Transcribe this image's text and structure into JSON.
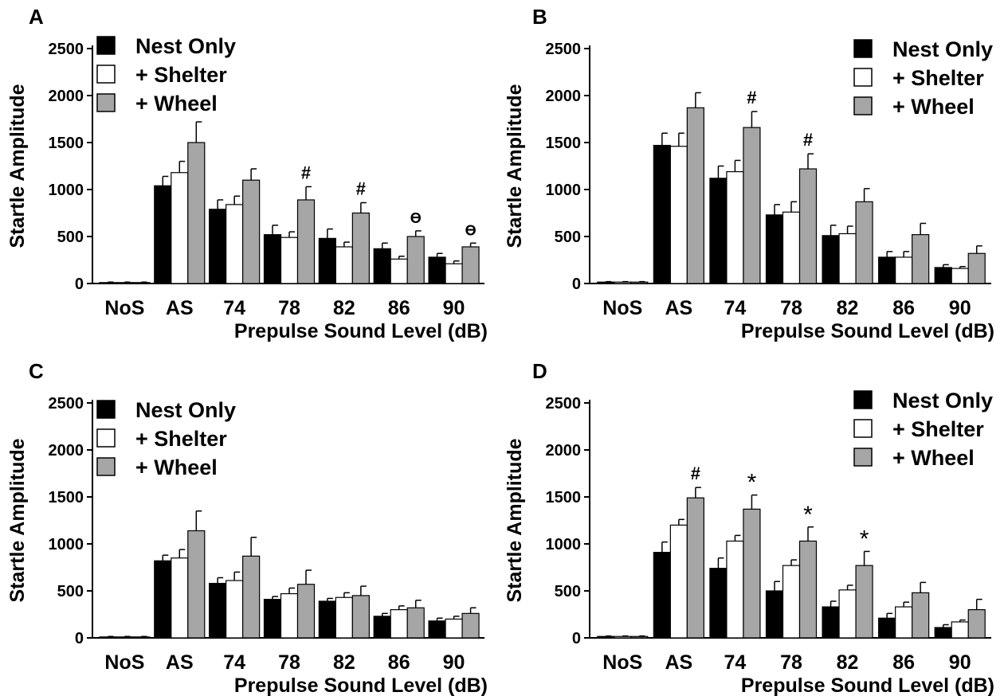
{
  "colors": {
    "Nest Only": "#000000",
    "+ Shelter": "#ffffff",
    "+ Wheel": "#a6a6a6",
    "outline": "#000000"
  },
  "chart_data": [
    {
      "type": "bar",
      "panel": "A",
      "categories": [
        "NoS",
        "AS",
        "74",
        "78",
        "82",
        "86",
        "90"
      ],
      "xlabel": "Prepulse Sound Level (dB)",
      "ylabel": "Startle Amplitude",
      "ylim": [
        0,
        2500
      ],
      "yticks": [
        0,
        500,
        1000,
        1500,
        2000,
        2500
      ],
      "legend": {
        "position": "top-left",
        "entries": [
          "Nest Only",
          "+ Shelter",
          "+ Wheel"
        ]
      },
      "series": [
        {
          "name": "Nest Only",
          "values": [
            10,
            1040,
            790,
            520,
            480,
            370,
            280
          ],
          "errors": [
            5,
            100,
            100,
            100,
            100,
            60,
            40
          ]
        },
        {
          "name": "+ Shelter",
          "values": [
            10,
            1180,
            840,
            490,
            390,
            260,
            210
          ],
          "errors": [
            5,
            120,
            90,
            60,
            50,
            30,
            30
          ]
        },
        {
          "name": "+ Wheel",
          "values": [
            10,
            1500,
            1100,
            890,
            750,
            500,
            390
          ],
          "errors": [
            5,
            220,
            120,
            140,
            110,
            60,
            40
          ]
        }
      ],
      "annotations": [
        {
          "category": "78",
          "text": "#"
        },
        {
          "category": "82",
          "text": "#"
        },
        {
          "category": "86",
          "text": "ϴ"
        },
        {
          "category": "90",
          "text": "ϴ"
        }
      ]
    },
    {
      "type": "bar",
      "panel": "B",
      "categories": [
        "NoS",
        "AS",
        "74",
        "78",
        "82",
        "86",
        "90"
      ],
      "xlabel": "Prepulse Sound Level (dB)",
      "ylabel": "Startle Amplitude",
      "ylim": [
        0,
        2500
      ],
      "yticks": [
        0,
        500,
        1000,
        1500,
        2000,
        2500
      ],
      "legend": {
        "position": "top-right",
        "entries": [
          "Nest Only",
          "+ Shelter",
          "+ Wheel"
        ]
      },
      "series": [
        {
          "name": "Nest Only",
          "values": [
            15,
            1470,
            1120,
            730,
            510,
            280,
            170
          ],
          "errors": [
            5,
            130,
            130,
            110,
            110,
            60,
            30
          ]
        },
        {
          "name": "+ Shelter",
          "values": [
            15,
            1460,
            1190,
            760,
            530,
            280,
            160
          ],
          "errors": [
            5,
            140,
            120,
            110,
            80,
            60,
            20
          ]
        },
        {
          "name": "+ Wheel",
          "values": [
            15,
            1870,
            1660,
            1220,
            870,
            520,
            320
          ],
          "errors": [
            5,
            160,
            170,
            160,
            140,
            120,
            80
          ]
        }
      ],
      "annotations": [
        {
          "category": "74",
          "text": "#"
        },
        {
          "category": "78",
          "text": "#"
        }
      ]
    },
    {
      "type": "bar",
      "panel": "C",
      "categories": [
        "NoS",
        "AS",
        "74",
        "78",
        "82",
        "86",
        "90"
      ],
      "xlabel": "Prepulse Sound Level (dB)",
      "ylabel": "Startle Amplitude",
      "ylim": [
        0,
        2500
      ],
      "yticks": [
        0,
        500,
        1000,
        1500,
        2000,
        2500
      ],
      "legend": {
        "position": "top-left",
        "entries": [
          "Nest Only",
          "+ Shelter",
          "+ Wheel"
        ]
      },
      "series": [
        {
          "name": "Nest Only",
          "values": [
            10,
            820,
            580,
            410,
            390,
            230,
            180
          ],
          "errors": [
            5,
            60,
            60,
            30,
            30,
            30,
            30
          ]
        },
        {
          "name": "+ Shelter",
          "values": [
            10,
            850,
            610,
            470,
            430,
            300,
            200
          ],
          "errors": [
            5,
            90,
            90,
            60,
            50,
            40,
            30
          ]
        },
        {
          "name": "+ Wheel",
          "values": [
            10,
            1140,
            870,
            570,
            450,
            320,
            260
          ],
          "errors": [
            5,
            210,
            200,
            150,
            100,
            80,
            60
          ]
        }
      ],
      "annotations": []
    },
    {
      "type": "bar",
      "panel": "D",
      "categories": [
        "NoS",
        "AS",
        "74",
        "78",
        "82",
        "86",
        "90"
      ],
      "xlabel": "Prepulse Sound Level (dB)",
      "ylabel": "Startle Amplitude",
      "ylim": [
        0,
        2500
      ],
      "yticks": [
        0,
        500,
        1000,
        1500,
        2000,
        2500
      ],
      "legend": {
        "position": "top-right",
        "entries": [
          "Nest Only",
          "+ Shelter",
          "+ Wheel"
        ]
      },
      "series": [
        {
          "name": "Nest Only",
          "values": [
            15,
            910,
            740,
            500,
            330,
            210,
            110
          ],
          "errors": [
            5,
            110,
            110,
            100,
            60,
            50,
            30
          ]
        },
        {
          "name": "+ Shelter",
          "values": [
            15,
            1200,
            1030,
            770,
            510,
            330,
            170
          ],
          "errors": [
            5,
            60,
            60,
            60,
            50,
            50,
            20
          ]
        },
        {
          "name": "+ Wheel",
          "values": [
            15,
            1490,
            1370,
            1030,
            770,
            480,
            300
          ],
          "errors": [
            5,
            110,
            150,
            150,
            150,
            110,
            110
          ]
        }
      ],
      "annotations": [
        {
          "category": "AS",
          "text": "#"
        },
        {
          "category": "74",
          "text": "*"
        },
        {
          "category": "78",
          "text": "*"
        },
        {
          "category": "82",
          "text": "*"
        }
      ]
    }
  ]
}
